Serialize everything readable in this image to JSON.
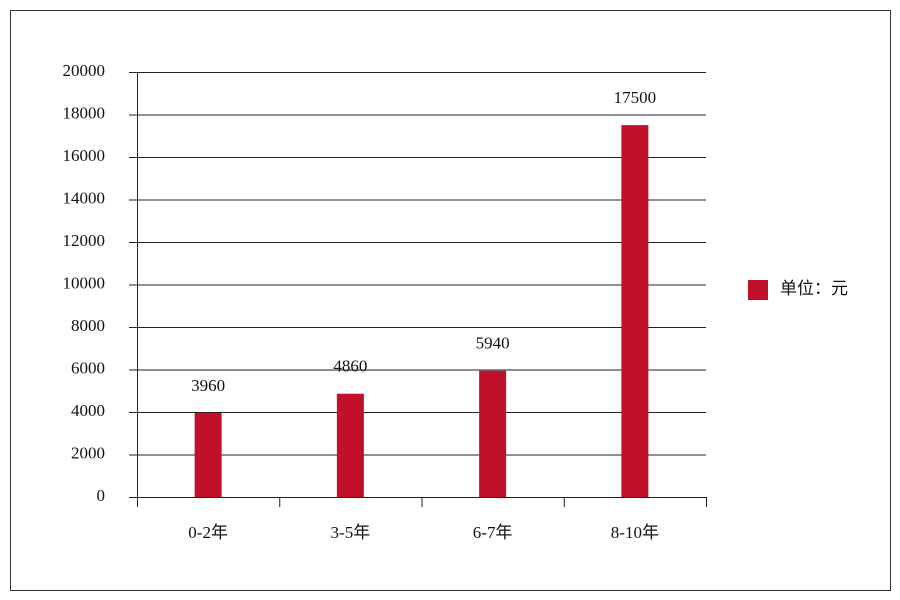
{
  "chart_data": {
    "type": "bar",
    "categories": [
      "0-2年",
      "3-5年",
      "6-7年",
      "8-10年"
    ],
    "series": [
      {
        "name": "单位：元",
        "color": "#c0102a",
        "values": [
          3960,
          4860,
          5940,
          17500
        ]
      }
    ],
    "ylim": [
      0,
      20000
    ],
    "yticks": [
      0,
      2000,
      4000,
      6000,
      8000,
      10000,
      12000,
      14000,
      16000,
      18000,
      20000
    ],
    "grid": true,
    "legend": "right"
  }
}
